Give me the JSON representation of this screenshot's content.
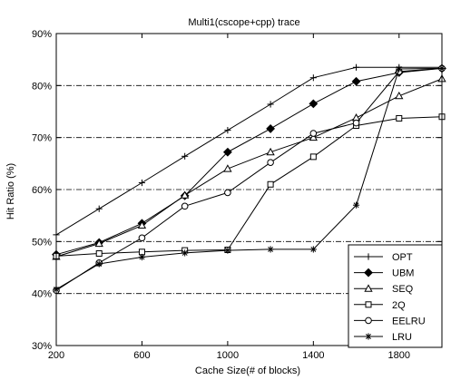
{
  "chart_data": {
    "type": "line",
    "title": "Multi1(cscope+cpp) trace",
    "xlabel": "Cache Size(# of blocks)",
    "ylabel": "Hit Ratio (%)",
    "xlim": [
      200,
      2000
    ],
    "ylim": [
      30,
      90
    ],
    "xticks": [
      200,
      600,
      1000,
      1400,
      1800
    ],
    "xtick_labels": [
      "200",
      "600",
      "1000",
      "1400",
      "1800"
    ],
    "yticks": [
      30,
      40,
      50,
      60,
      70,
      80,
      90
    ],
    "ytick_labels": [
      "30%",
      "40%",
      "50%",
      "60%",
      "70%",
      "80%",
      "90%"
    ],
    "grid": "horizontal dash-dot",
    "legend_position": "bottom-right",
    "series": [
      {
        "name": "OPT",
        "marker": "plus",
        "x": [
          200,
          400,
          600,
          800,
          1000,
          1200,
          1400,
          1600,
          1800,
          2000
        ],
        "y": [
          51.3,
          56.3,
          61.3,
          66.4,
          71.4,
          76.4,
          81.5,
          83.5,
          83.5,
          83.5
        ]
      },
      {
        "name": "UBM",
        "marker": "filled-diamond",
        "x": [
          200,
          400,
          600,
          800,
          1000,
          1200,
          1400,
          1600,
          1800,
          2000
        ],
        "y": [
          47.5,
          49.8,
          53.5,
          58.8,
          67.2,
          71.7,
          76.5,
          80.8,
          82.5,
          83.3
        ]
      },
      {
        "name": "SEQ",
        "marker": "triangle",
        "x": [
          200,
          400,
          600,
          800,
          1000,
          1200,
          1400,
          1600,
          1800,
          2000
        ],
        "y": [
          47.1,
          49.6,
          53.1,
          58.9,
          64.0,
          67.2,
          70.0,
          73.8,
          78.0,
          81.3
        ]
      },
      {
        "name": "2Q",
        "marker": "square",
        "x": [
          200,
          400,
          600,
          800,
          1000,
          1200,
          1400,
          1600,
          1800,
          2000
        ],
        "y": [
          47.2,
          47.7,
          48.0,
          48.3,
          48.4,
          61.0,
          66.3,
          72.3,
          73.7,
          74.0
        ]
      },
      {
        "name": "EELRU",
        "marker": "circle",
        "x": [
          200,
          400,
          600,
          800,
          1000,
          1200,
          1400,
          1600,
          1800,
          2000
        ],
        "y": [
          40.6,
          45.9,
          50.7,
          56.8,
          59.4,
          65.2,
          70.8,
          72.8,
          82.7,
          83.3
        ]
      },
      {
        "name": "LRU",
        "marker": "asterisk",
        "x": [
          200,
          400,
          600,
          800,
          1000,
          1200,
          1400,
          1600,
          1800,
          2000
        ],
        "y": [
          40.8,
          45.7,
          47.0,
          47.8,
          48.3,
          48.5,
          48.5,
          57.0,
          83.2,
          83.3
        ]
      }
    ]
  }
}
